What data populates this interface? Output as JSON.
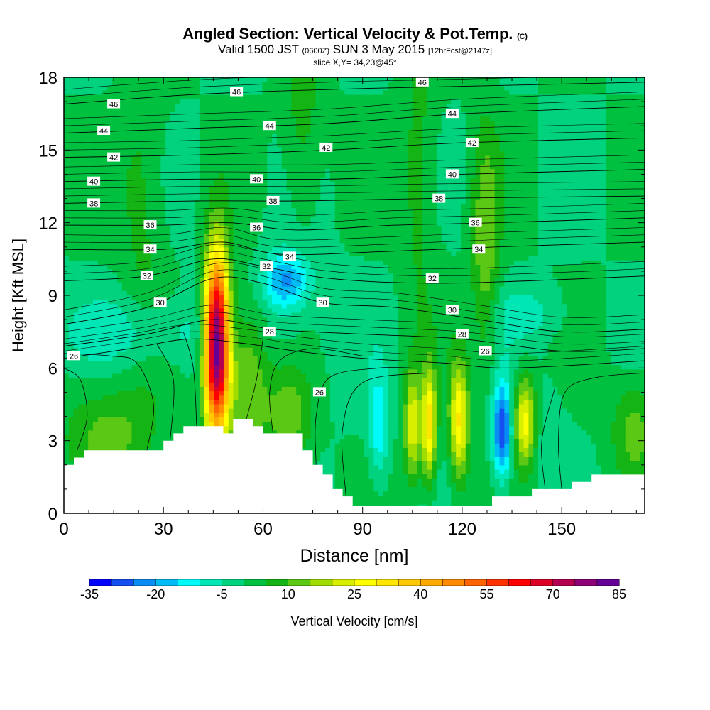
{
  "header": {
    "title_main": "Angled Section: Vertical Velocity & Pot.Temp.",
    "title_mark": "(C)",
    "valid_prefix": "Valid 1500 JST",
    "valid_zone": "(0600Z)",
    "valid_date": "SUN 3 May 2015",
    "forecast_note": "[12hrFcst@2147z]",
    "slice_info": "slice X,Y= 34,23@45°"
  },
  "chart_data": {
    "type": "heatmap",
    "xlabel": "Distance [nm]",
    "ylabel": "Height [Kft MSL]",
    "xlim": [
      0,
      175
    ],
    "ylim": [
      0,
      18
    ],
    "x_ticks": [
      0,
      30,
      60,
      90,
      120,
      150
    ],
    "y_ticks": [
      0,
      3,
      6,
      9,
      12,
      15,
      18
    ],
    "colorbar": {
      "label": "Vertical Velocity [cm/s]",
      "tick_labels": [
        -35,
        -20,
        -5,
        10,
        25,
        40,
        55,
        70,
        85
      ],
      "bins": [
        -35,
        -30,
        -25,
        -20,
        -15,
        -10,
        -5,
        0,
        5,
        10,
        15,
        20,
        25,
        30,
        35,
        40,
        45,
        50,
        55,
        60,
        65,
        70,
        75,
        80,
        85
      ],
      "colors": [
        "#0000ff",
        "#1450f0",
        "#0a8cf5",
        "#00bcf5",
        "#00fafa",
        "#00e6b4",
        "#00d27d",
        "#00c040",
        "#14b414",
        "#5ac814",
        "#a0dc00",
        "#d8f000",
        "#ffff00",
        "#ffe600",
        "#ffc800",
        "#ffaa00",
        "#ff8c00",
        "#ff6400",
        "#ff3200",
        "#ff0000",
        "#dc0028",
        "#b40050",
        "#8c0078",
        "#640096"
      ]
    },
    "background_velocity": 0,
    "terrain_kft": [
      [
        0,
        2.0
      ],
      [
        3,
        2.0
      ],
      [
        3,
        2.3
      ],
      [
        6,
        2.3
      ],
      [
        6,
        2.6
      ],
      [
        30,
        2.6
      ],
      [
        30,
        3.0
      ],
      [
        33,
        3.0
      ],
      [
        33,
        3.3
      ],
      [
        36,
        3.3
      ],
      [
        36,
        3.6
      ],
      [
        48,
        3.6
      ],
      [
        48,
        3.3
      ],
      [
        51,
        3.3
      ],
      [
        51,
        3.9
      ],
      [
        57,
        3.9
      ],
      [
        57,
        3.6
      ],
      [
        60,
        3.6
      ],
      [
        60,
        3.3
      ],
      [
        72,
        3.3
      ],
      [
        72,
        2.6
      ],
      [
        75,
        2.6
      ],
      [
        75,
        2.0
      ],
      [
        78,
        2.0
      ],
      [
        78,
        1.6
      ],
      [
        81,
        1.6
      ],
      [
        81,
        1.0
      ],
      [
        84,
        1.0
      ],
      [
        84,
        0.7
      ],
      [
        87,
        0.7
      ],
      [
        87,
        0.3
      ],
      [
        129,
        0.3
      ],
      [
        129,
        0.7
      ],
      [
        141,
        0.7
      ],
      [
        141,
        1.0
      ],
      [
        153,
        1.0
      ],
      [
        153,
        1.3
      ],
      [
        159,
        1.3
      ],
      [
        159,
        1.6
      ],
      [
        175,
        1.6
      ]
    ],
    "velocity_features": [
      {
        "x": 46,
        "y": 7.0,
        "sx": 2.6,
        "sy": 2.6,
        "value": 88
      },
      {
        "x": 55,
        "y": 6.0,
        "sx": 5.0,
        "sy": 2.4,
        "value": 20
      },
      {
        "x": 67,
        "y": 9.6,
        "sx": 5.0,
        "sy": 0.8,
        "value": -20
      },
      {
        "x": 60,
        "y": 7.5,
        "sx": 14,
        "sy": 2.5,
        "value": -5
      },
      {
        "x": 24,
        "y": 7.5,
        "sx": 20,
        "sy": 1.0,
        "value": -8
      },
      {
        "x": 95,
        "y": 3.6,
        "sx": 2.0,
        "sy": 1.6,
        "value": -14
      },
      {
        "x": 105,
        "y": 3.6,
        "sx": 1.8,
        "sy": 1.6,
        "value": 24
      },
      {
        "x": 110,
        "y": 3.6,
        "sx": 1.5,
        "sy": 1.6,
        "value": 32
      },
      {
        "x": 119,
        "y": 3.8,
        "sx": 2.0,
        "sy": 1.7,
        "value": 30
      },
      {
        "x": 132,
        "y": 3.4,
        "sx": 2.0,
        "sy": 1.4,
        "value": -30
      },
      {
        "x": 139,
        "y": 3.8,
        "sx": 2.3,
        "sy": 1.3,
        "value": 28
      },
      {
        "x": 146,
        "y": 3.0,
        "sx": 4,
        "sy": 1.8,
        "value": -4
      },
      {
        "x": 14,
        "y": 3.3,
        "sx": 10,
        "sy": 1.5,
        "value": 12
      },
      {
        "x": 172,
        "y": 3.5,
        "sx": 5,
        "sy": 1.5,
        "value": 12
      },
      {
        "x": 68,
        "y": 4.0,
        "sx": 5,
        "sy": 1.5,
        "value": 14
      },
      {
        "x": 127,
        "y": 11.0,
        "sx": 3,
        "sy": 3.5,
        "value": 14
      },
      {
        "x": 107,
        "y": 14,
        "sx": 4,
        "sy": 4,
        "value": 8
      },
      {
        "x": 24,
        "y": 13,
        "sx": 5,
        "sy": 4,
        "value": 7
      },
      {
        "x": 72,
        "y": 16,
        "sx": 4,
        "sy": 3,
        "value": 8
      },
      {
        "x": 140,
        "y": 8.2,
        "sx": 8,
        "sy": 0.8,
        "value": -7
      }
    ],
    "theta_contours": [
      {
        "label": "26",
        "theta": 26,
        "points": [
          [
            0,
            6.4
          ],
          [
            20,
            6.8
          ],
          [
            38,
            7.2
          ],
          [
            55,
            7.0
          ],
          [
            70,
            6.7
          ],
          [
            90,
            6.4
          ],
          [
            115,
            6.2
          ],
          [
            135,
            6.0
          ],
          [
            175,
            6.3
          ]
        ],
        "label_positions": [
          [
            3,
            6.5
          ],
          [
            77,
            5.0
          ],
          [
            127,
            6.7
          ]
        ]
      },
      {
        "label": "28",
        "theta": 28,
        "points": [
          [
            0,
            6.9
          ],
          [
            25,
            7.4
          ],
          [
            45,
            8.0
          ],
          [
            63,
            7.6
          ],
          [
            90,
            7.4
          ],
          [
            120,
            7.2
          ],
          [
            150,
            6.7
          ],
          [
            175,
            6.8
          ]
        ],
        "label_positions": [
          [
            62,
            7.5
          ],
          [
            120,
            7.4
          ]
        ]
      },
      {
        "label": "30",
        "theta": 30,
        "points": [
          [
            0,
            7.8
          ],
          [
            25,
            8.5
          ],
          [
            45,
            9.7
          ],
          [
            60,
            9.5
          ],
          [
            78,
            8.7
          ],
          [
            100,
            8.5
          ],
          [
            125,
            8.0
          ],
          [
            150,
            7.5
          ],
          [
            175,
            7.6
          ]
        ],
        "label_positions": [
          [
            29,
            8.7
          ],
          [
            78,
            8.7
          ],
          [
            117,
            8.4
          ]
        ]
      },
      {
        "label": "32",
        "theta": 32,
        "points": [
          [
            0,
            9.6
          ],
          [
            25,
            9.8
          ],
          [
            45,
            10.5
          ],
          [
            60,
            10.2
          ],
          [
            80,
            9.7
          ],
          [
            110,
            9.5
          ],
          [
            140,
            9.6
          ],
          [
            175,
            9.8
          ]
        ],
        "label_positions": [
          [
            25,
            9.8
          ],
          [
            61,
            10.2
          ],
          [
            111,
            9.7
          ]
        ]
      },
      {
        "label": "34",
        "theta": 34,
        "points": [
          [
            0,
            10.9
          ],
          [
            30,
            10.9
          ],
          [
            48,
            11.2
          ],
          [
            65,
            10.7
          ],
          [
            95,
            10.8
          ],
          [
            130,
            11.0
          ],
          [
            175,
            11.2
          ]
        ],
        "label_positions": [
          [
            26,
            10.9
          ],
          [
            68,
            10.6
          ],
          [
            125,
            10.9
          ]
        ]
      },
      {
        "label": "36",
        "theta": 36,
        "points": [
          [
            0,
            11.9
          ],
          [
            30,
            11.9
          ],
          [
            50,
            12.0
          ],
          [
            70,
            11.7
          ],
          [
            100,
            11.9
          ],
          [
            130,
            12.0
          ],
          [
            175,
            12.2
          ]
        ],
        "label_positions": [
          [
            26,
            11.9
          ],
          [
            58,
            11.8
          ],
          [
            124,
            12.0
          ]
        ]
      },
      {
        "label": "38",
        "theta": 38,
        "points": [
          [
            0,
            12.8
          ],
          [
            40,
            12.9
          ],
          [
            70,
            12.9
          ],
          [
            110,
            13.0
          ],
          [
            175,
            13.1
          ]
        ],
        "label_positions": [
          [
            9,
            12.8
          ],
          [
            63,
            12.9
          ],
          [
            113,
            13.0
          ]
        ]
      },
      {
        "label": "40",
        "theta": 40,
        "points": [
          [
            0,
            13.7
          ],
          [
            40,
            13.8
          ],
          [
            80,
            13.8
          ],
          [
            120,
            14.0
          ],
          [
            175,
            14.2
          ]
        ],
        "label_positions": [
          [
            9,
            13.7
          ],
          [
            58,
            13.8
          ],
          [
            117,
            14.0
          ]
        ]
      },
      {
        "label": "42",
        "theta": 42,
        "points": [
          [
            0,
            14.7
          ],
          [
            40,
            14.8
          ],
          [
            80,
            15.0
          ],
          [
            120,
            15.3
          ],
          [
            175,
            15.5
          ]
        ],
        "label_positions": [
          [
            15,
            14.7
          ],
          [
            79,
            15.1
          ],
          [
            123,
            15.3
          ]
        ]
      },
      {
        "label": "44",
        "theta": 44,
        "points": [
          [
            0,
            15.7
          ],
          [
            40,
            15.9
          ],
          [
            80,
            16.1
          ],
          [
            120,
            16.5
          ],
          [
            175,
            16.8
          ]
        ],
        "label_positions": [
          [
            12,
            15.8
          ],
          [
            62,
            16.0
          ],
          [
            117,
            16.5
          ]
        ]
      },
      {
        "label": "46",
        "theta": 46,
        "points": [
          [
            0,
            16.9
          ],
          [
            40,
            17.3
          ],
          [
            80,
            17.5
          ],
          [
            110,
            17.6
          ],
          [
            175,
            17.8
          ]
        ],
        "label_positions": [
          [
            15,
            16.9
          ],
          [
            52,
            17.4
          ],
          [
            108,
            17.8
          ]
        ]
      }
    ],
    "minor_contour_offsets_kft": [
      0.3,
      0.6
    ],
    "vertical_contours": [
      {
        "label": "26",
        "points": [
          [
            4,
            2.6
          ],
          [
            7,
            4.0
          ],
          [
            5,
            5.5
          ],
          [
            0,
            6.0
          ]
        ]
      },
      {
        "label": "",
        "points": [
          [
            25,
            2.6
          ],
          [
            27,
            4.5
          ],
          [
            22,
            6.2
          ],
          [
            14,
            6.5
          ],
          [
            0,
            6.6
          ]
        ]
      },
      {
        "label": "",
        "points": [
          [
            32,
            3.0
          ],
          [
            33,
            5.5
          ],
          [
            28,
            7.0
          ]
        ]
      },
      {
        "label": "",
        "points": [
          [
            40,
            3.6
          ],
          [
            39,
            6.0
          ],
          [
            36,
            7.5
          ]
        ]
      },
      {
        "label": "",
        "points": [
          [
            55,
            3.9
          ],
          [
            58,
            5.5
          ],
          [
            60,
            7.2
          ]
        ]
      },
      {
        "label": "",
        "points": [
          [
            63,
            3.3
          ],
          [
            62,
            5.0
          ],
          [
            65,
            6.3
          ],
          [
            75,
            6.8
          ],
          [
            90,
            6.5
          ]
        ]
      },
      {
        "label": "",
        "points": [
          [
            76,
            2.0
          ],
          [
            76,
            4.0
          ],
          [
            80,
            5.6
          ],
          [
            95,
            6.0
          ],
          [
            105,
            6.0
          ]
        ]
      },
      {
        "label": "",
        "points": [
          [
            85,
            0.7
          ],
          [
            84,
            3.5
          ],
          [
            90,
            5.4
          ],
          [
            110,
            5.8
          ]
        ]
      },
      {
        "label": "",
        "points": [
          [
            150,
            1.0
          ],
          [
            149,
            3.0
          ],
          [
            151,
            5.0
          ],
          [
            160,
            5.6
          ],
          [
            175,
            5.8
          ]
        ]
      },
      {
        "label": "",
        "points": [
          [
            145,
            1.0
          ],
          [
            144,
            3.0
          ],
          [
            148,
            5.2
          ]
        ]
      }
    ]
  }
}
